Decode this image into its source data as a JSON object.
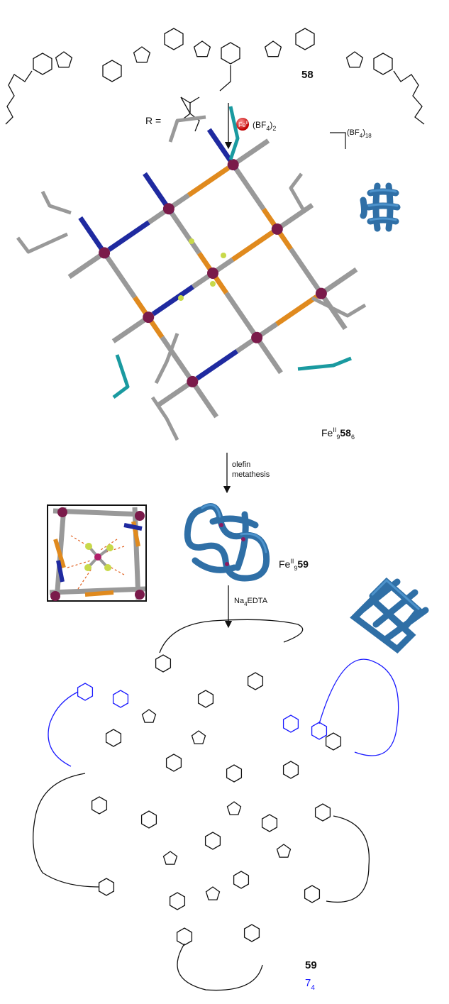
{
  "ligand": {
    "label": "58",
    "r_prefix": "R ="
  },
  "step1": {
    "reagent": [
      "Fe",
      "II",
      "(BF",
      "4",
      ")",
      "2"
    ]
  },
  "counterion": [
    "(BF",
    "4",
    ")",
    "18"
  ],
  "complex1": [
    "Fe",
    "II",
    "9",
    "58",
    "6"
  ],
  "step2": {
    "conditions": [
      "olefin",
      "metathesis"
    ]
  },
  "complex2": [
    "Fe",
    "II",
    "9",
    "59"
  ],
  "step3": {
    "reagent": [
      "Na",
      "4",
      "EDTA"
    ]
  },
  "product": {
    "label": "59",
    "knot": [
      "7",
      "4"
    ]
  }
}
